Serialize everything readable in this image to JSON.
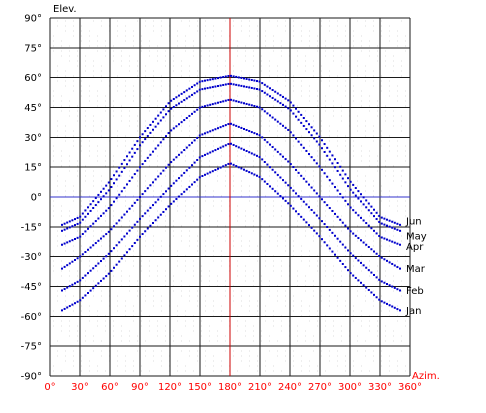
{
  "chart_data": {
    "type": "scatter",
    "title": "",
    "xlabel": "Azim.",
    "ylabel": "Elev.",
    "xlim": [
      0,
      360
    ],
    "ylim": [
      -90,
      90
    ],
    "x_ticks": [
      0,
      30,
      60,
      90,
      120,
      150,
      180,
      210,
      240,
      270,
      300,
      330,
      360
    ],
    "y_ticks": [
      90,
      75,
      60,
      45,
      30,
      15,
      0,
      -15,
      -30,
      -45,
      -60,
      -75,
      -90
    ],
    "x_tick_labels": [
      "0°",
      "30°",
      "60°",
      "90°",
      "120°",
      "150°",
      "180°",
      "210°",
      "240°",
      "270°",
      "300°",
      "330°",
      "360°"
    ],
    "y_tick_labels": [
      "90°",
      "75°",
      "60°",
      "45°",
      "30°",
      "15°",
      "0°",
      "-15°",
      "-30°",
      "-45°",
      "-60°",
      "-75°",
      "-90°"
    ],
    "grid": true,
    "reference_lines": {
      "horizon_elevation": 0,
      "meridian_azimuth": 180
    },
    "series": [
      {
        "name": "Jun",
        "color": "#0000cc",
        "x": [
          12,
          30,
          60,
          90,
          120,
          150,
          180,
          210,
          240,
          270,
          300,
          330,
          350
        ],
        "y": [
          -14,
          -10,
          8,
          30,
          48,
          58,
          61,
          58,
          48,
          30,
          8,
          -10,
          -14
        ]
      },
      {
        "name": "May",
        "color": "#0000cc",
        "x": [
          12,
          30,
          60,
          90,
          120,
          150,
          180,
          210,
          240,
          270,
          300,
          330,
          350
        ],
        "y": [
          -17,
          -13,
          4,
          26,
          44,
          54,
          57,
          54,
          44,
          26,
          4,
          -13,
          -17
        ]
      },
      {
        "name": "Apr",
        "color": "#0000cc",
        "x": [
          12,
          30,
          60,
          90,
          120,
          150,
          180,
          210,
          240,
          270,
          300,
          330,
          350
        ],
        "y": [
          -24,
          -20,
          -5,
          15,
          33,
          45,
          49,
          45,
          33,
          15,
          -5,
          -20,
          -24
        ]
      },
      {
        "name": "Mar",
        "color": "#0000cc",
        "x": [
          12,
          30,
          60,
          90,
          120,
          150,
          180,
          210,
          240,
          270,
          300,
          330,
          350
        ],
        "y": [
          -36,
          -30,
          -17,
          0,
          17,
          31,
          37,
          31,
          17,
          0,
          -17,
          -30,
          -36
        ]
      },
      {
        "name": "Feb",
        "color": "#0000cc",
        "x": [
          12,
          30,
          60,
          90,
          120,
          150,
          180,
          210,
          240,
          270,
          300,
          330,
          350
        ],
        "y": [
          -47,
          -42,
          -28,
          -11,
          5,
          20,
          27,
          20,
          5,
          -11,
          -28,
          -42,
          -47
        ]
      },
      {
        "name": "Jan",
        "color": "#0000cc",
        "x": [
          12,
          30,
          60,
          90,
          120,
          150,
          180,
          210,
          240,
          270,
          300,
          330,
          350
        ],
        "y": [
          -57,
          -52,
          -38,
          -20,
          -4,
          10,
          17,
          10,
          -4,
          -20,
          -38,
          -52,
          -57
        ]
      }
    ],
    "colors": {
      "grid": "#1a1a1a",
      "faint_texture": "#dcdcdc",
      "horizon_line": "#3333cc",
      "meridian_line": "#cc0000",
      "points": "#0000cc",
      "x_labels": "#ff0000",
      "y_labels": "#000000"
    }
  }
}
